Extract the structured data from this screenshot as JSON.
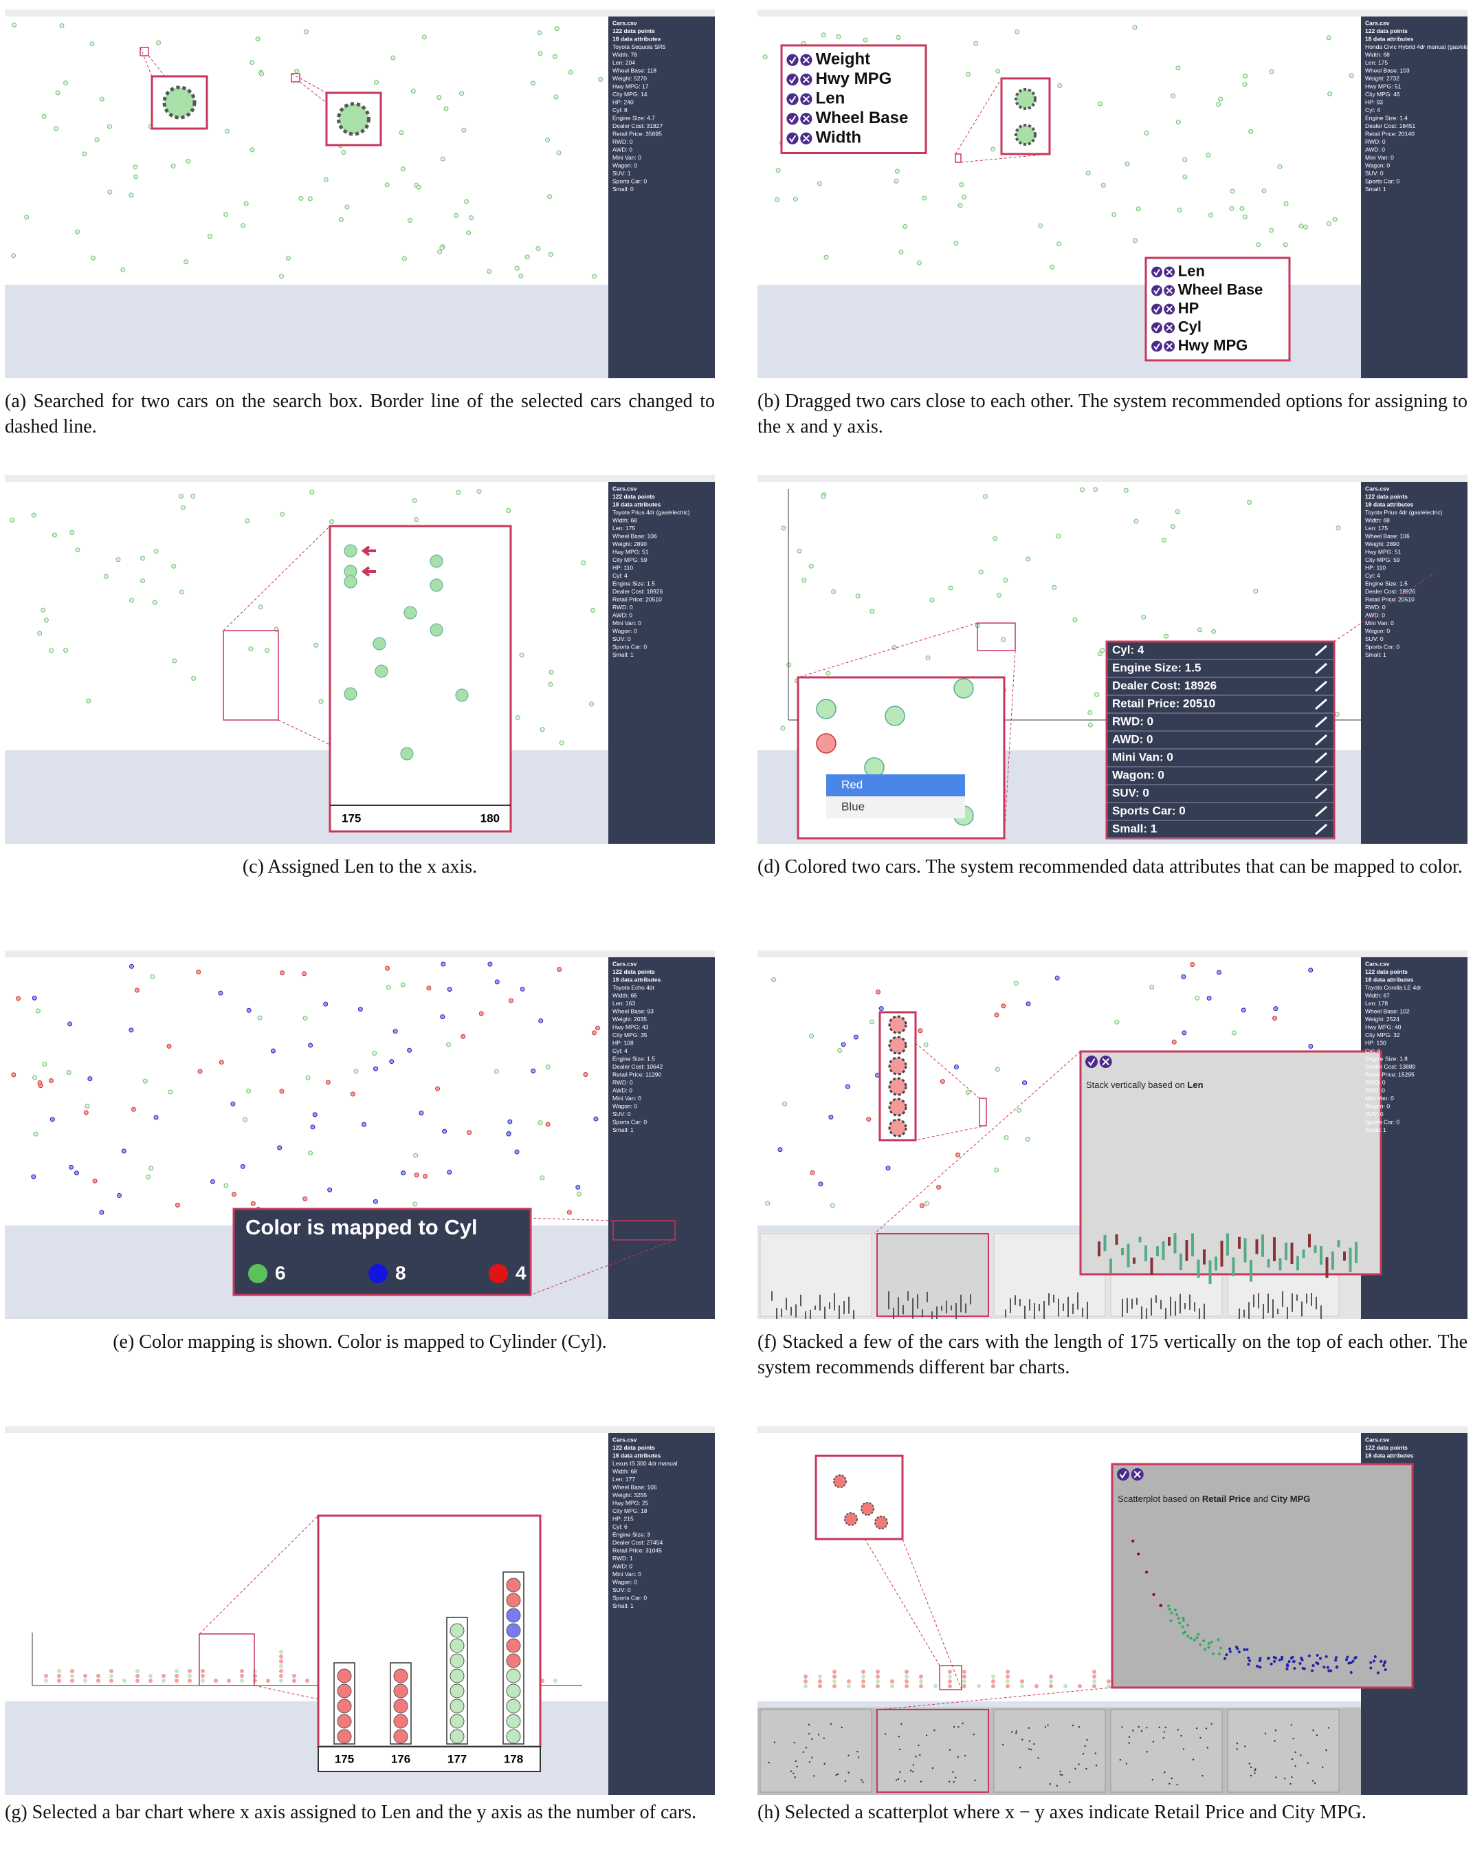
{
  "panels": [
    {
      "caption": "(a) Searched for two cars on the search box. Border line of the selected cars changed to dashed line.",
      "sidebar": [
        "Cars.csv",
        "122 data points",
        "18 data attributes",
        "Toyota Sequoia SR5",
        "Width: 78",
        "Len: 204",
        "Wheel Base: 118",
        "Weight: 5270",
        "Hwy MPG: 17",
        "City MPG: 14",
        "HP: 240",
        "Cyl: 8",
        "Engine Size: 4.7",
        "Dealer Cost: 31827",
        "Retail Price: 35695",
        "RWD: 0",
        "AWD: 0",
        "Mini Van: 0",
        "Wagon: 0",
        "SUV: 1",
        "Sports Car: 0",
        "Small: 0"
      ]
    },
    {
      "caption": "(b) Dragged two cars close to each other. The system recommended options for assigning to the x and y axis.",
      "sidebar": [
        "Cars.csv",
        "122 data points",
        "18 data attributes",
        "Honda Civic Hybrid 4dr manual (gas/electric)",
        "Width: 68",
        "Len: 175",
        "Wheel Base: 103",
        "Weight: 2732",
        "Hwy MPG: 51",
        "City MPG: 46",
        "HP: 93",
        "Cyl: 4",
        "Engine Size: 1.4",
        "Dealer Cost: 18451",
        "Retail Price: 20140",
        "RWD: 0",
        "AWD: 0",
        "Mini Van: 0",
        "Wagon: 0",
        "SUV: 0",
        "Sports Car: 0",
        "Small: 1"
      ],
      "y_options": [
        "Weight",
        "Hwy MPG",
        "Len",
        "Wheel Base",
        "Width"
      ],
      "x_options": [
        "Len",
        "Wheel Base",
        "HP",
        "Cyl",
        "Hwy MPG"
      ]
    },
    {
      "caption": "(c) Assigned Len to the x axis.",
      "sidebar": [
        "Cars.csv",
        "122 data points",
        "18 data attributes",
        "Toyota Prius 4dr (gas/electric)",
        "Width: 68",
        "Len: 175",
        "Wheel Base: 106",
        "Weight: 2890",
        "Hwy MPG: 51",
        "City MPG: 59",
        "HP: 110",
        "Cyl: 4",
        "Engine Size: 1.5",
        "Dealer Cost: 18926",
        "Retail Price: 20510",
        "RWD: 0",
        "AWD: 0",
        "Mini Van: 0",
        "Wagon: 0",
        "SUV: 0",
        "Sports Car: 0",
        "Small: 1"
      ],
      "zoom_axis": [
        "175",
        "180"
      ]
    },
    {
      "caption": "(d) Colored two cars. The system recommended data attributes that can be mapped to color.",
      "sidebar": [
        "Cars.csv",
        "122 data points",
        "18 data attributes",
        "Toyota Prius 4dr (gas/electric)",
        "Width: 68",
        "Len: 175",
        "Wheel Base: 106",
        "Weight: 2890",
        "Hwy MPG: 51",
        "City MPG: 59",
        "HP: 110",
        "Cyl: 4",
        "Engine Size: 1.5",
        "Dealer Cost: 18926",
        "Retail Price: 20510",
        "RWD: 0",
        "AWD: 0",
        "Mini Van: 0",
        "Wagon: 0",
        "SUV: 0",
        "Sports Car: 0",
        "Small: 1"
      ],
      "attributes": [
        "Cyl: 4",
        "Engine Size: 1.5",
        "Dealer Cost: 18926",
        "Retail Price: 20510",
        "RWD: 0",
        "AWD: 0",
        "Mini Van: 0",
        "Wagon: 0",
        "SUV: 0",
        "Sports Car: 0",
        "Small: 1"
      ],
      "color_menu": [
        "Red",
        "Blue"
      ]
    },
    {
      "caption": "(e) Color mapping is shown. Color is mapped to Cylinder (Cyl).",
      "sidebar": [
        "Cars.csv",
        "122 data points",
        "18 data attributes",
        "Toyota Echo 4dr",
        "Width: 65",
        "Len: 163",
        "Wheel Base: 93",
        "Weight: 2035",
        "Hwy MPG: 43",
        "City MPG: 35",
        "HP: 108",
        "Cyl: 4",
        "Engine Size: 1.5",
        "Dealer Cost: 10642",
        "Retail Price: 11290",
        "RWD: 0",
        "AWD: 0",
        "Mini Van: 0",
        "Wagon: 0",
        "SUV: 0",
        "Sports Car: 0",
        "Small: 1"
      ],
      "legend": {
        "title": "Color is mapped to Cyl",
        "entries": [
          {
            "label": "6",
            "color": "#5cc05c"
          },
          {
            "label": "8",
            "color": "#1414e0"
          },
          {
            "label": "4",
            "color": "#e01414"
          }
        ]
      }
    },
    {
      "caption": "(f) Stacked a few of the cars with the length of 175 vertically on the top of each other. The system recommends different bar charts.",
      "sidebar": [
        "Cars.csv",
        "122 data points",
        "18 data attributes",
        "Toyota Corolla LE 4dr",
        "Width: 67",
        "Len: 178",
        "Wheel Base: 102",
        "Weight: 2524",
        "Hwy MPG: 40",
        "City MPG: 32",
        "HP: 130",
        "Cyl: 4",
        "Engine Size: 1.8",
        "Dealer Cost: 13889",
        "Retail Price: 15295",
        "RWD: 0",
        "AWD: 0",
        "Mini Van: 0",
        "Wagon: 0",
        "SUV: 0",
        "Sports Car: 0",
        "Small: 1"
      ],
      "popup": [
        "Stack vertically based on ",
        "Len"
      ]
    },
    {
      "caption": "(g) Selected a bar chart where x axis assigned to Len and the y axis as the number of cars.",
      "sidebar": [
        "Cars.csv",
        "122 data points",
        "18 data attributes",
        "Lexus IS 300 4dr manual",
        "Width: 68",
        "Len: 177",
        "Wheel Base: 105",
        "Weight: 3255",
        "Hwy MPG: 25",
        "City MPG: 18",
        "HP: 215",
        "Cyl: 6",
        "Engine Size: 3",
        "Dealer Cost: 27454",
        "Retail Price: 31045",
        "RWD: 1",
        "AWD: 0",
        "Mini Van: 0",
        "Wagon: 0",
        "SUV: 0",
        "Sports Car: 0",
        "Small: 1"
      ],
      "zoom_axis": [
        "175",
        "176",
        "177",
        "178"
      ]
    },
    {
      "caption": "(h) Selected a scatterplot where x − y axes indicate Retail Price and City MPG.",
      "sidebar": [
        "Cars.csv",
        "122 data points",
        "18 data attributes"
      ],
      "popup": [
        "Scatterplot based on ",
        "Retail Price",
        " and ",
        "City MPG"
      ]
    }
  ]
}
